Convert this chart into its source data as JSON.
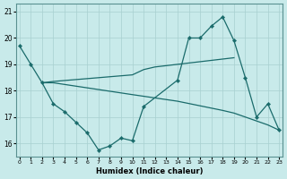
{
  "background_color": "#c8eaea",
  "grid_color": "#a8d0d0",
  "line_color": "#1a6b6b",
  "xlabel": "Humidex (Indice chaleur)",
  "xlim": [
    -0.3,
    23.3
  ],
  "ylim": [
    15.5,
    21.3
  ],
  "xticks": [
    0,
    1,
    2,
    3,
    4,
    5,
    6,
    7,
    8,
    9,
    10,
    11,
    12,
    13,
    14,
    15,
    16,
    17,
    18,
    19,
    20,
    21,
    22,
    23
  ],
  "yticks": [
    16,
    17,
    18,
    19,
    20,
    21
  ],
  "series": [
    {
      "x": [
        0,
        1,
        2,
        3,
        4,
        5,
        6,
        7,
        8,
        9,
        10,
        11,
        14,
        15,
        16,
        17,
        18,
        19,
        20,
        21,
        22,
        23
      ],
      "y": [
        19.7,
        19.0,
        18.3,
        17.5,
        17.2,
        16.8,
        16.4,
        15.75,
        15.9,
        16.2,
        16.1,
        17.4,
        18.4,
        20.0,
        20.0,
        20.45,
        20.8,
        19.9,
        18.5,
        17.0,
        17.5,
        16.5
      ]
    },
    {
      "x": [
        2,
        3,
        10,
        11,
        12,
        13,
        14,
        15,
        16,
        17,
        18,
        19
      ],
      "y": [
        18.3,
        18.35,
        18.6,
        18.8,
        18.9,
        18.95,
        19.0,
        19.05,
        19.1,
        19.15,
        19.2,
        19.25
      ]
    },
    {
      "x": [
        2,
        3,
        10,
        14,
        18,
        19,
        20,
        22,
        23
      ],
      "y": [
        18.3,
        18.3,
        17.85,
        17.6,
        17.25,
        17.15,
        17.0,
        16.7,
        16.5
      ]
    }
  ]
}
